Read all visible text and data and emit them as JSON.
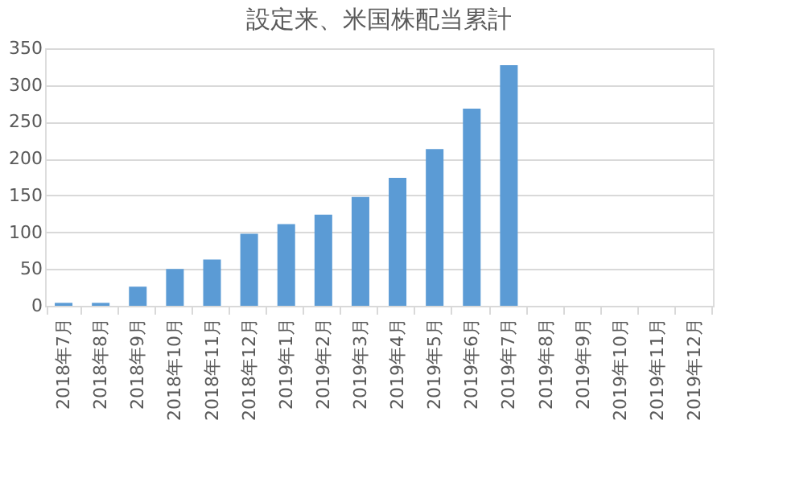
{
  "chart_data": {
    "type": "bar",
    "title": "設定来、米国株配当累計",
    "categories": [
      "2018年7月",
      "2018年8月",
      "2018年9月",
      "2018年10月",
      "2018年11月",
      "2018年12月",
      "2019年1月",
      "2019年2月",
      "2019年3月",
      "2019年4月",
      "2019年5月",
      "2019年6月",
      "2019年7月",
      "2019年8月",
      "2019年9月",
      "2019年10月",
      "2019年11月",
      "2019年12月"
    ],
    "values": [
      4,
      4,
      26,
      50,
      63,
      98,
      111,
      124,
      148,
      174,
      213,
      268,
      327,
      null,
      null,
      null,
      null,
      null
    ],
    "color": "#5b9bd5",
    "ylim": [
      0,
      350
    ],
    "yticks": [
      0,
      50,
      100,
      150,
      200,
      250,
      300,
      350
    ],
    "grid": "y"
  }
}
